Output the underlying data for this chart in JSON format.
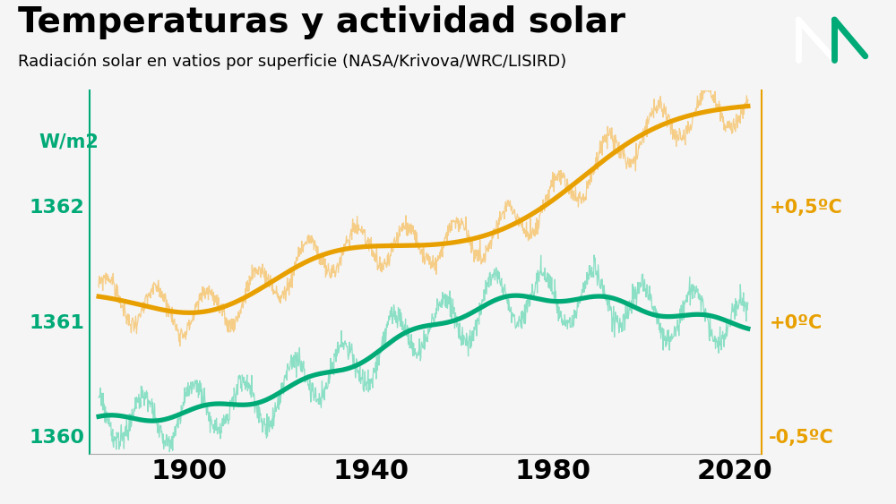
{
  "title": "Temperaturas y actividad solar",
  "subtitle": "Radiación solar en vatios por superficie (NASA/Krivova/WRC/LISIRD)",
  "title_fontsize": 28,
  "subtitle_fontsize": 13,
  "background_color": "#f5f5f5",
  "plot_bg_color": "#f5f5f5",
  "left_axis_color": "#00aa77",
  "right_axis_color": "#e8a000",
  "solar_line_color": "#e8a000",
  "solar_thin_color": "#f5c97a",
  "temp_line_color": "#00aa77",
  "temp_thin_color": "#80ddc0",
  "year_start": 1880,
  "year_end": 2023,
  "yleft_min": 1359.85,
  "yleft_max": 1363.0,
  "yleft_ticks": [
    1360,
    1361,
    1362
  ],
  "yright_labels": [
    "-0,5ºC",
    "+0ºC",
    "+0,5ºC"
  ],
  "ylabel_left": "W/m2",
  "logo_bg": "#c8c8c8"
}
